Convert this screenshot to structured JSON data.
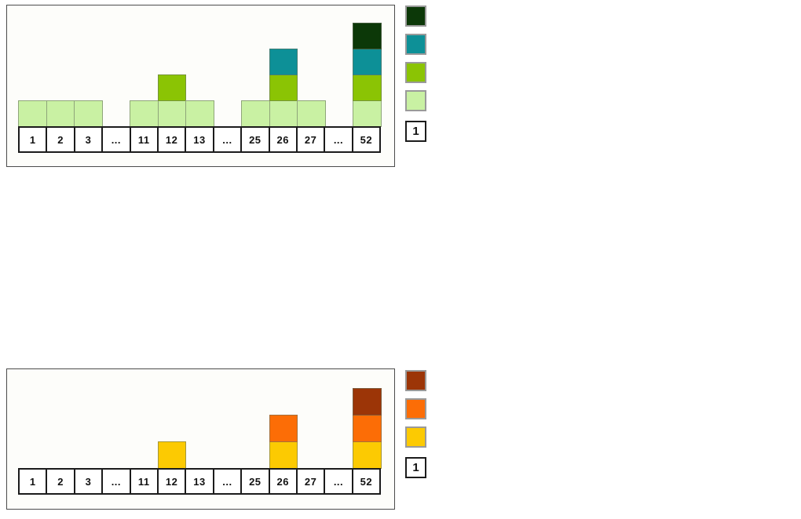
{
  "figures": [
    {
      "id": "weekly-units-green",
      "colors": {
        "s1": "#c9f1a3",
        "s2": "#8bc404",
        "s3": "#0d9097",
        "s4": "#0c3808"
      },
      "cells": [
        {
          "label": "1",
          "stack": [
            "s1"
          ]
        },
        {
          "label": "2",
          "stack": [
            "s1"
          ]
        },
        {
          "label": "3",
          "stack": [
            "s1"
          ]
        },
        {
          "label": "...",
          "stack": []
        },
        {
          "label": "11",
          "stack": [
            "s1"
          ]
        },
        {
          "label": "12",
          "stack": [
            "s1",
            "s2"
          ]
        },
        {
          "label": "13",
          "stack": [
            "s1"
          ]
        },
        {
          "label": "...",
          "stack": []
        },
        {
          "label": "25",
          "stack": [
            "s1"
          ]
        },
        {
          "label": "26",
          "stack": [
            "s1",
            "s2",
            "s3"
          ]
        },
        {
          "label": "27",
          "stack": [
            "s1"
          ]
        },
        {
          "label": "...",
          "stack": []
        },
        {
          "label": "52",
          "stack": [
            "s1",
            "s2",
            "s3",
            "s4"
          ]
        }
      ],
      "legend": {
        "swatches": [
          "s4",
          "s3",
          "s2",
          "s1"
        ],
        "unit_label": "1"
      }
    },
    {
      "id": "weekly-units-orange",
      "colors": {
        "s1": "#fcca02",
        "s2": "#fc6d06",
        "s3": "#9c3507"
      },
      "cells": [
        {
          "label": "1",
          "stack": []
        },
        {
          "label": "2",
          "stack": []
        },
        {
          "label": "3",
          "stack": []
        },
        {
          "label": "...",
          "stack": []
        },
        {
          "label": "11",
          "stack": []
        },
        {
          "label": "12",
          "stack": [
            "s1"
          ]
        },
        {
          "label": "13",
          "stack": []
        },
        {
          "label": "...",
          "stack": []
        },
        {
          "label": "25",
          "stack": []
        },
        {
          "label": "26",
          "stack": [
            "s1",
            "s2"
          ]
        },
        {
          "label": "27",
          "stack": []
        },
        {
          "label": "...",
          "stack": []
        },
        {
          "label": "52",
          "stack": [
            "s1",
            "s2",
            "s3"
          ]
        }
      ],
      "legend": {
        "swatches": [
          "s3",
          "s2",
          "s1"
        ],
        "unit_label": "1"
      }
    }
  ]
}
